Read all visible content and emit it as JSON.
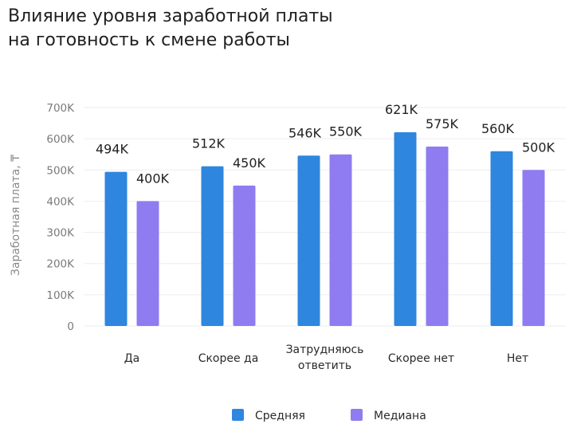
{
  "chart_data": {
    "type": "bar",
    "title": [
      "Влияние уровня заработной платы",
      "на готовность к смене работы"
    ],
    "ylabel": "Заработная плата, ₸",
    "xlabel": "",
    "ylim": [
      0,
      700000
    ],
    "yticks": [
      {
        "value": 0,
        "label": "0"
      },
      {
        "value": 100000,
        "label": "100K"
      },
      {
        "value": 200000,
        "label": "200K"
      },
      {
        "value": 300000,
        "label": "300K"
      },
      {
        "value": 400000,
        "label": "400K"
      },
      {
        "value": 500000,
        "label": "500K"
      },
      {
        "value": 600000,
        "label": "600K"
      },
      {
        "value": 700000,
        "label": "700K"
      }
    ],
    "categories": [
      [
        "Да"
      ],
      [
        "Скорее да"
      ],
      [
        "Затрудняюсь",
        "ответить"
      ],
      [
        "Скорее нет"
      ],
      [
        "Нет"
      ]
    ],
    "series": [
      {
        "name": "Средняя",
        "color": "#2e86de",
        "values": [
          494000,
          512000,
          546000,
          621000,
          560000
        ],
        "labels": [
          "494K",
          "512K",
          "546K",
          "621K",
          "560K"
        ]
      },
      {
        "name": "Медиана",
        "color": "#8f7cf0",
        "values": [
          400000,
          450000,
          550000,
          575000,
          500000
        ],
        "labels": [
          "400K",
          "450K",
          "550K",
          "575K",
          "500K"
        ]
      }
    ],
    "grid": true,
    "legend": "bottom-center"
  }
}
